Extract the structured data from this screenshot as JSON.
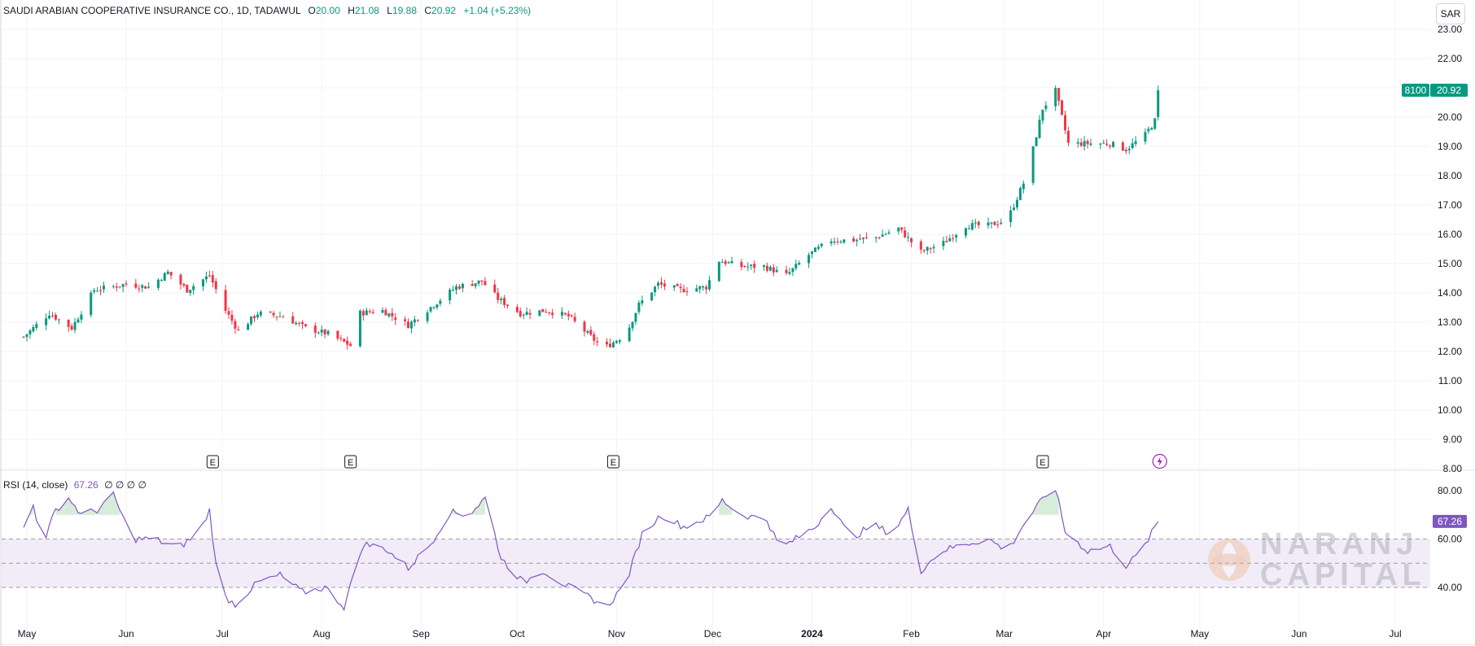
{
  "header": {
    "symbol": "SAUDI ARABIAN COOPERATIVE INSURANCE CO., 1D, TADAWUL",
    "open_label": "O",
    "open": "20.00",
    "high_label": "H",
    "high": "21.08",
    "low_label": "L",
    "low": "19.88",
    "close_label": "C",
    "close": "20.92",
    "change": "+1.04 (+5.23%)"
  },
  "currency_button": "SAR",
  "price_badge": {
    "volume": "8100",
    "price": "20.92"
  },
  "rsi_header": {
    "label": "RSI (14, close)",
    "value": "67.26",
    "zeros": "∅ ∅ ∅ ∅"
  },
  "rsi_badge": "67.26",
  "watermark": {
    "line1": "NARANJ",
    "line2": "CAPITAL"
  },
  "colors": {
    "up": "#089981",
    "down": "#f23645",
    "rsi": "#7e57c2",
    "rsi_band": "#ede7f6",
    "grid": "#f0f3fa"
  },
  "chart_data": [
    {
      "type": "candlestick",
      "y_axis": {
        "ticks": [
          "23.00",
          "22.00",
          "21.00",
          "20.00",
          "19.00",
          "18.00",
          "17.00",
          "16.00",
          "15.00",
          "14.00",
          "13.00",
          "12.00",
          "11.00",
          "10.00",
          "9.00",
          "8.00"
        ],
        "ylim": [
          8,
          23.4
        ]
      },
      "x_axis": {
        "ticks": [
          "May",
          "Jun",
          "Jul",
          "Aug",
          "Sep",
          "Oct",
          "Nov",
          "Dec",
          "2024",
          "Feb",
          "Mar",
          "Apr",
          "May",
          "Jun",
          "Jul"
        ]
      },
      "close_anchors": [
        {
          "d": "2023-04-30",
          "v": 12.5
        },
        {
          "d": "2023-05-08",
          "v": 13.3
        },
        {
          "d": "2023-05-15",
          "v": 12.8
        },
        {
          "d": "2023-05-22",
          "v": 14.1
        },
        {
          "d": "2023-06-01",
          "v": 14.3
        },
        {
          "d": "2023-06-08",
          "v": 14.2
        },
        {
          "d": "2023-06-14",
          "v": 14.7
        },
        {
          "d": "2023-06-20",
          "v": 14.1
        },
        {
          "d": "2023-06-27",
          "v": 14.6
        },
        {
          "d": "2023-07-02",
          "v": 13.4
        },
        {
          "d": "2023-07-06",
          "v": 12.7
        },
        {
          "d": "2023-07-12",
          "v": 13.3
        },
        {
          "d": "2023-07-20",
          "v": 13.2
        },
        {
          "d": "2023-07-27",
          "v": 12.8
        },
        {
          "d": "2023-08-03",
          "v": 12.6
        },
        {
          "d": "2023-08-10",
          "v": 12.2
        },
        {
          "d": "2023-08-12",
          "v": 13.3
        },
        {
          "d": "2023-08-20",
          "v": 13.4
        },
        {
          "d": "2023-08-28",
          "v": 12.9
        },
        {
          "d": "2023-09-05",
          "v": 13.6
        },
        {
          "d": "2023-09-12",
          "v": 14.2
        },
        {
          "d": "2023-09-20",
          "v": 14.4
        },
        {
          "d": "2023-09-25",
          "v": 13.8
        },
        {
          "d": "2023-10-02",
          "v": 13.3
        },
        {
          "d": "2023-10-10",
          "v": 13.4
        },
        {
          "d": "2023-10-17",
          "v": 13.2
        },
        {
          "d": "2023-10-22",
          "v": 12.7
        },
        {
          "d": "2023-10-28",
          "v": 12.1
        },
        {
          "d": "2023-11-04",
          "v": 12.6
        },
        {
          "d": "2023-11-08",
          "v": 13.6
        },
        {
          "d": "2023-11-14",
          "v": 14.3
        },
        {
          "d": "2023-11-21",
          "v": 14.1
        },
        {
          "d": "2023-11-29",
          "v": 14.2
        },
        {
          "d": "2023-12-03",
          "v": 15.1
        },
        {
          "d": "2023-12-10",
          "v": 14.9
        },
        {
          "d": "2023-12-17",
          "v": 14.9
        },
        {
          "d": "2023-12-24",
          "v": 14.6
        },
        {
          "d": "2023-12-31",
          "v": 15.3
        },
        {
          "d": "2024-01-07",
          "v": 15.8
        },
        {
          "d": "2024-01-14",
          "v": 15.8
        },
        {
          "d": "2024-01-21",
          "v": 15.9
        },
        {
          "d": "2024-01-28",
          "v": 16.2
        },
        {
          "d": "2024-02-04",
          "v": 15.4
        },
        {
          "d": "2024-02-11",
          "v": 15.7
        },
        {
          "d": "2024-02-18",
          "v": 16.3
        },
        {
          "d": "2024-02-25",
          "v": 16.3
        },
        {
          "d": "2024-03-02",
          "v": 16.5
        },
        {
          "d": "2024-03-08",
          "v": 18.0
        },
        {
          "d": "2024-03-13",
          "v": 20.3
        },
        {
          "d": "2024-03-17",
          "v": 20.9
        },
        {
          "d": "2024-03-21",
          "v": 19.1
        },
        {
          "d": "2024-03-27",
          "v": 19.1
        },
        {
          "d": "2024-04-03",
          "v": 19.1
        },
        {
          "d": "2024-04-08",
          "v": 18.9
        },
        {
          "d": "2024-04-14",
          "v": 19.4
        },
        {
          "d": "2024-04-17",
          "v": 19.88
        },
        {
          "d": "2024-04-18",
          "v": 20.92
        }
      ],
      "last_bar": {
        "open": 20.0,
        "high": 21.08,
        "low": 19.88,
        "close": 20.92
      },
      "earnings_markers": [
        "2023-06-28",
        "2023-08-10",
        "2023-10-31",
        "2024-03-13"
      ],
      "event_marker": "2024-04-18"
    },
    {
      "type": "line",
      "title": "RSI (14, close)",
      "y_axis": {
        "ticks": [
          "80.00",
          "60.00",
          "40.00"
        ],
        "ylim": [
          29,
          85
        ]
      },
      "band": [
        40,
        60
      ],
      "midline": 50,
      "anchors": [
        {
          "d": "2023-04-30",
          "v": 64
        },
        {
          "d": "2023-05-03",
          "v": 74
        },
        {
          "d": "2023-05-06",
          "v": 58
        },
        {
          "d": "2023-05-10",
          "v": 72
        },
        {
          "d": "2023-05-14",
          "v": 77
        },
        {
          "d": "2023-05-18",
          "v": 70
        },
        {
          "d": "2023-05-23",
          "v": 72
        },
        {
          "d": "2023-05-28",
          "v": 78
        },
        {
          "d": "2023-06-03",
          "v": 60
        },
        {
          "d": "2023-06-10",
          "v": 60
        },
        {
          "d": "2023-06-17",
          "v": 56
        },
        {
          "d": "2023-06-24",
          "v": 63
        },
        {
          "d": "2023-06-27",
          "v": 72
        },
        {
          "d": "2023-06-30",
          "v": 38
        },
        {
          "d": "2023-07-05",
          "v": 33
        },
        {
          "d": "2023-07-12",
          "v": 42
        },
        {
          "d": "2023-07-19",
          "v": 45
        },
        {
          "d": "2023-07-26",
          "v": 38
        },
        {
          "d": "2023-08-02",
          "v": 40
        },
        {
          "d": "2023-08-08",
          "v": 32
        },
        {
          "d": "2023-08-14",
          "v": 58
        },
        {
          "d": "2023-08-21",
          "v": 56
        },
        {
          "d": "2023-08-28",
          "v": 48
        },
        {
          "d": "2023-09-04",
          "v": 58
        },
        {
          "d": "2023-09-10",
          "v": 71
        },
        {
          "d": "2023-09-16",
          "v": 70
        },
        {
          "d": "2023-09-21",
          "v": 77
        },
        {
          "d": "2023-09-26",
          "v": 52
        },
        {
          "d": "2023-10-03",
          "v": 42
        },
        {
          "d": "2023-10-09",
          "v": 47
        },
        {
          "d": "2023-10-16",
          "v": 41
        },
        {
          "d": "2023-10-22",
          "v": 37
        },
        {
          "d": "2023-10-29",
          "v": 32
        },
        {
          "d": "2023-11-04",
          "v": 42
        },
        {
          "d": "2023-11-09",
          "v": 62
        },
        {
          "d": "2023-11-15",
          "v": 70
        },
        {
          "d": "2023-11-22",
          "v": 65
        },
        {
          "d": "2023-11-30",
          "v": 69
        },
        {
          "d": "2023-12-04",
          "v": 76
        },
        {
          "d": "2023-12-10",
          "v": 70
        },
        {
          "d": "2023-12-18",
          "v": 68
        },
        {
          "d": "2023-12-22",
          "v": 56
        },
        {
          "d": "2024-01-02",
          "v": 65
        },
        {
          "d": "2024-01-07",
          "v": 74
        },
        {
          "d": "2024-01-13",
          "v": 60
        },
        {
          "d": "2024-01-20",
          "v": 66
        },
        {
          "d": "2024-01-26",
          "v": 62
        },
        {
          "d": "2024-01-31",
          "v": 72
        },
        {
          "d": "2024-02-04",
          "v": 47
        },
        {
          "d": "2024-02-10",
          "v": 55
        },
        {
          "d": "2024-02-18",
          "v": 58
        },
        {
          "d": "2024-02-25",
          "v": 60
        },
        {
          "d": "2024-03-02",
          "v": 55
        },
        {
          "d": "2024-03-08",
          "v": 68
        },
        {
          "d": "2024-03-14",
          "v": 78
        },
        {
          "d": "2024-03-17",
          "v": 81
        },
        {
          "d": "2024-03-20",
          "v": 63
        },
        {
          "d": "2024-03-27",
          "v": 55
        },
        {
          "d": "2024-04-03",
          "v": 57
        },
        {
          "d": "2024-04-08",
          "v": 49
        },
        {
          "d": "2024-04-13",
          "v": 55
        },
        {
          "d": "2024-04-18",
          "v": 67.26
        }
      ]
    }
  ]
}
